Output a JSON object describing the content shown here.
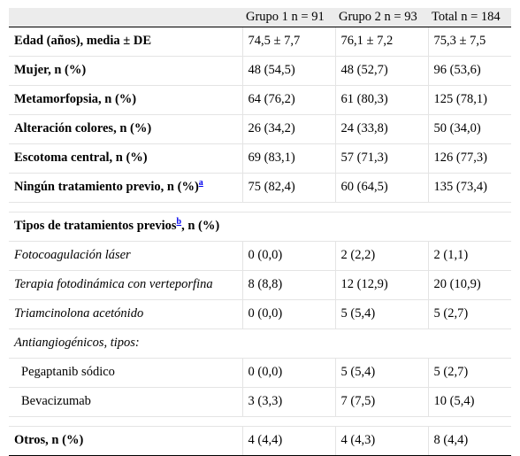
{
  "header": [
    "",
    "Grupo 1 n = 91",
    "Grupo 2 n = 93",
    "Total n = 184"
  ],
  "rows": [
    {
      "label": "Edad (años), media ± DE",
      "g1": "74,5 ± 7,7",
      "g2": "76,1 ± 7,2",
      "tot": "75,3 ± 7,5"
    },
    {
      "label": "Mujer, n (%)",
      "g1": "48 (54,5)",
      "g2": "48 (52,7)",
      "tot": "96 (53,6)"
    },
    {
      "label": "Metamorfopsia, n (%)",
      "g1": "64 (76,2)",
      "g2": "61 (80,3)",
      "tot": "125 (78,1)"
    },
    {
      "label": "Alteración colores, n (%)",
      "g1": "26 (34,2)",
      "g2": "24 (33,8)",
      "tot": "50 (34,0)"
    },
    {
      "label": "Escotoma central, n (%)",
      "g1": "69 (83,1)",
      "g2": "57 (71,3)",
      "tot": "126 (77,3)"
    },
    {
      "label": "Ningún tratamiento previo, n (%)",
      "sup": "a",
      "g1": "75 (82,4)",
      "g2": "60 (64,5)",
      "tot": "135 (73,4)"
    }
  ],
  "section": {
    "label_a": "Tipos de tratamientos previos",
    "sup": "b",
    "label_b": ", n (%)"
  },
  "treatments": [
    {
      "label": "Fotocoagulación láser",
      "g1": "0 (0,0)",
      "g2": "2 (2,2)",
      "tot": "2 (1,1)"
    },
    {
      "label": "Terapia fotodinámica con verteporfina",
      "g1": "8 (8,8)",
      "g2": "12 (12,9)",
      "tot": "20 (10,9)"
    },
    {
      "label": "Triamcinolona acetónido",
      "g1": "0 (0,0)",
      "g2": "5 (5,4)",
      "tot": "5 (2,7)"
    }
  ],
  "antiangio": {
    "label": "Antiangiogénicos, tipos:"
  },
  "antiangio_items": [
    {
      "label": "Pegaptanib sódico",
      "g1": "0 (0,0)",
      "g2": "5 (5,4)",
      "tot": "5 (2,7)"
    },
    {
      "label": "Bevacizumab",
      "g1": "3 (3,3)",
      "g2": "7 (7,5)",
      "tot": "10 (5,4)"
    }
  ],
  "others": {
    "label": "Otros, n (%)",
    "g1": "4 (4,4)",
    "g2": "4 (4,3)",
    "tot": "8 (4,4)"
  }
}
